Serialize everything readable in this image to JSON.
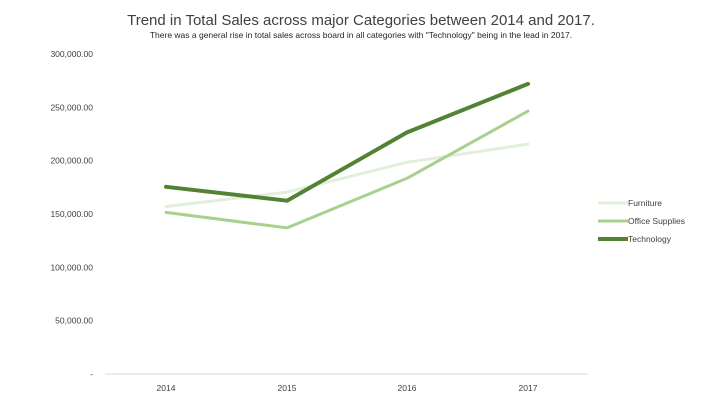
{
  "chart_data": {
    "type": "line",
    "title": "Trend in Total Sales across major Categories between 2014 and 2017.",
    "subtitle": "There was a general rise in total sales across board in all categories with \"Technology\" being in the lead in 2017.",
    "xlabel": "",
    "ylabel": "",
    "categories": [
      "2014",
      "2015",
      "2016",
      "2017"
    ],
    "ylim": [
      0,
      300000
    ],
    "yticks": [
      0,
      50000,
      100000,
      150000,
      200000,
      250000,
      300000
    ],
    "ytick_labels": [
      "-",
      "50,000.00",
      "100,000.00",
      "150,000.00",
      "200,000.00",
      "250,000.00",
      "300,000.00"
    ],
    "grid": false,
    "legend_position": "right",
    "series": [
      {
        "name": "Furniture",
        "color": "#e2efd9",
        "values": [
          157000,
          170500,
          198500,
          215500
        ]
      },
      {
        "name": "Office Supplies",
        "color": "#a9d18e",
        "values": [
          151500,
          137000,
          183500,
          246500
        ]
      },
      {
        "name": "Technology",
        "color": "#548235",
        "values": [
          175500,
          162500,
          226500,
          272000
        ]
      }
    ]
  }
}
